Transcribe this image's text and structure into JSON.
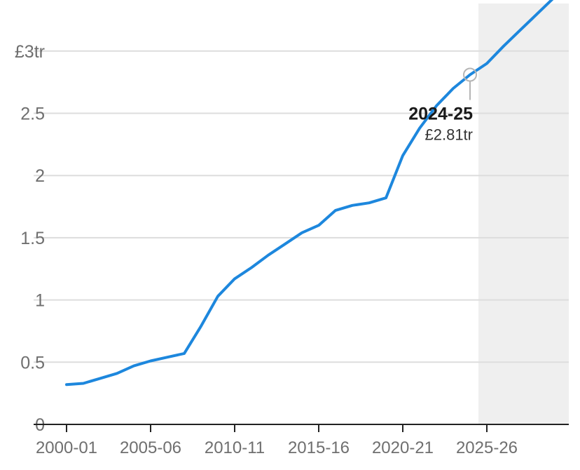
{
  "chart_data": {
    "type": "line",
    "title": "",
    "xlabel": "",
    "ylabel": "",
    "ylim": [
      0,
      3.4
    ],
    "y_ticks": [
      {
        "value": 0,
        "label": "0"
      },
      {
        "value": 0.5,
        "label": "0.5"
      },
      {
        "value": 1,
        "label": "1"
      },
      {
        "value": 1.5,
        "label": "1.5"
      },
      {
        "value": 2,
        "label": "2"
      },
      {
        "value": 2.5,
        "label": "2.5"
      },
      {
        "value": 3,
        "label": "£3tr"
      }
    ],
    "x_ticks": [
      "2000-01",
      "2005-06",
      "2010-11",
      "2015-16",
      "2020-21",
      "2025-26"
    ],
    "grid": true,
    "forecast_from": "2025-26",
    "colors": {
      "line": "#1d87dd",
      "forecast_shade": "#efefef",
      "grid": "#dddddd",
      "axis": "#222222",
      "marker": "#b5b5b5"
    },
    "x": [
      "2000-01",
      "2001-02",
      "2002-03",
      "2003-04",
      "2004-05",
      "2005-06",
      "2006-07",
      "2007-08",
      "2008-09",
      "2009-10",
      "2010-11",
      "2011-12",
      "2012-13",
      "2013-14",
      "2014-15",
      "2015-16",
      "2016-17",
      "2017-18",
      "2018-19",
      "2019-20",
      "2020-21",
      "2021-22",
      "2022-23",
      "2023-24",
      "2024-25",
      "2025-26",
      "2026-27",
      "2027-28",
      "2028-29",
      "2029-30"
    ],
    "values": [
      0.32,
      0.33,
      0.37,
      0.41,
      0.47,
      0.51,
      0.54,
      0.57,
      0.79,
      1.03,
      1.17,
      1.26,
      1.36,
      1.45,
      1.54,
      1.6,
      1.72,
      1.76,
      1.78,
      1.82,
      2.16,
      2.38,
      2.56,
      2.7,
      2.81,
      2.9,
      3.04,
      3.17,
      3.3,
      3.43
    ],
    "annotation": {
      "x": "2024-25",
      "value": 2.81,
      "title": "2024-25",
      "label": "£2.81tr"
    }
  }
}
